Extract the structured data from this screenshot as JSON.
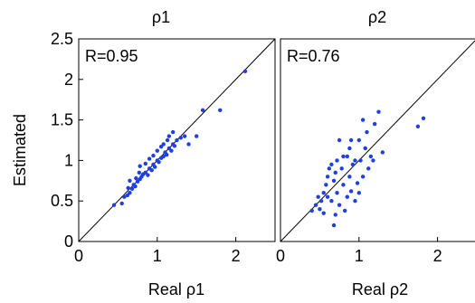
{
  "chart_data": [
    {
      "type": "scatter",
      "title": "ρ1",
      "xlabel": "Real ρ1",
      "ylabel": "Estimated",
      "annotation": "R=0.95",
      "xlim": [
        0,
        2.5
      ],
      "ylim": [
        0,
        2.5
      ],
      "xticks": [
        "0",
        "1",
        "2"
      ],
      "yticks": [
        "0",
        "0.5",
        "1",
        "1.5",
        "2",
        "2.5"
      ],
      "identity_line": true,
      "marker_color": "#1f3fe0",
      "points": [
        [
          0.45,
          0.45
        ],
        [
          0.55,
          0.47
        ],
        [
          0.58,
          0.55
        ],
        [
          0.62,
          0.57
        ],
        [
          0.65,
          0.6
        ],
        [
          0.63,
          0.66
        ],
        [
          0.68,
          0.65
        ],
        [
          0.7,
          0.7
        ],
        [
          0.72,
          0.68
        ],
        [
          0.75,
          0.74
        ],
        [
          0.73,
          0.78
        ],
        [
          0.78,
          0.77
        ],
        [
          0.8,
          0.8
        ],
        [
          0.77,
          0.85
        ],
        [
          0.82,
          0.83
        ],
        [
          0.85,
          0.85
        ],
        [
          0.88,
          0.82
        ],
        [
          0.9,
          0.9
        ],
        [
          0.93,
          0.88
        ],
        [
          0.95,
          0.95
        ],
        [
          0.97,
          0.92
        ],
        [
          1.0,
          1.0
        ],
        [
          1.02,
          0.98
        ],
        [
          1.05,
          1.03
        ],
        [
          1.08,
          1.05
        ],
        [
          1.1,
          1.1
        ],
        [
          1.12,
          1.07
        ],
        [
          1.15,
          1.15
        ],
        [
          1.18,
          1.12
        ],
        [
          1.2,
          1.2
        ],
        [
          1.22,
          1.18
        ],
        [
          1.25,
          1.25
        ],
        [
          1.05,
          1.17
        ],
        [
          1.0,
          1.12
        ],
        [
          0.95,
          1.06
        ],
        [
          1.15,
          1.3
        ],
        [
          1.2,
          1.35
        ],
        [
          1.3,
          1.28
        ],
        [
          1.35,
          1.3
        ],
        [
          0.85,
          0.96
        ],
        [
          0.9,
          1.02
        ],
        [
          1.08,
          1.2
        ],
        [
          1.13,
          1.25
        ],
        [
          0.78,
          0.93
        ],
        [
          1.5,
          1.3
        ],
        [
          1.4,
          1.2
        ],
        [
          1.58,
          1.62
        ],
        [
          1.8,
          1.62
        ],
        [
          2.12,
          2.1
        ],
        [
          0.65,
          0.75
        ]
      ]
    },
    {
      "type": "scatter",
      "title": "ρ2",
      "xlabel": "Real ρ2",
      "ylabel": "",
      "annotation": "R=0.76",
      "xlim": [
        0,
        2.5
      ],
      "ylim": [
        0,
        2.5
      ],
      "xticks": [
        "0",
        "1",
        "2"
      ],
      "yticks": [],
      "identity_line": true,
      "marker_color": "#1f3fe0",
      "points": [
        [
          0.4,
          0.38
        ],
        [
          0.45,
          0.45
        ],
        [
          0.48,
          0.55
        ],
        [
          0.5,
          0.4
        ],
        [
          0.52,
          0.5
        ],
        [
          0.55,
          0.6
        ],
        [
          0.55,
          0.35
        ],
        [
          0.58,
          0.7
        ],
        [
          0.6,
          0.55
        ],
        [
          0.6,
          0.8
        ],
        [
          0.62,
          0.9
        ],
        [
          0.65,
          0.5
        ],
        [
          0.65,
          0.95
        ],
        [
          0.68,
          0.75
        ],
        [
          0.68,
          0.2
        ],
        [
          0.7,
          0.85
        ],
        [
          0.7,
          0.33
        ],
        [
          0.72,
          1.0
        ],
        [
          0.72,
          0.6
        ],
        [
          0.75,
          1.25
        ],
        [
          0.75,
          0.45
        ],
        [
          0.78,
          0.9
        ],
        [
          0.8,
          0.7
        ],
        [
          0.8,
          1.05
        ],
        [
          0.82,
          0.38
        ],
        [
          0.85,
          1.05
        ],
        [
          0.85,
          0.55
        ],
        [
          0.88,
          0.8
        ],
        [
          0.88,
          1.15
        ],
        [
          0.9,
          0.62
        ],
        [
          0.92,
          0.95
        ],
        [
          0.95,
          1.0
        ],
        [
          0.95,
          0.5
        ],
        [
          0.98,
          0.72
        ],
        [
          1.0,
          1.25
        ],
        [
          1.02,
          1.0
        ],
        [
          1.05,
          0.8
        ],
        [
          1.05,
          1.5
        ],
        [
          1.08,
          1.15
        ],
        [
          1.1,
          1.35
        ],
        [
          1.12,
          0.9
        ],
        [
          1.15,
          1.05
        ],
        [
          1.18,
          1.0
        ],
        [
          1.2,
          1.45
        ],
        [
          1.25,
          1.6
        ],
        [
          1.3,
          1.1
        ],
        [
          1.75,
          1.42
        ],
        [
          1.82,
          1.52
        ],
        [
          0.9,
          1.25
        ],
        [
          1.0,
          0.6
        ]
      ]
    }
  ]
}
